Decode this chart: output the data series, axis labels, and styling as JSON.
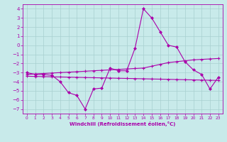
{
  "title": "",
  "xlabel": "Windchill (Refroidissement éolien,°C)",
  "ylabel": "",
  "background_color": "#c8eaea",
  "grid_color": "#a8d0d0",
  "line_color": "#aa00aa",
  "x_values": [
    0,
    1,
    2,
    3,
    4,
    5,
    6,
    7,
    8,
    9,
    10,
    11,
    12,
    13,
    14,
    15,
    16,
    17,
    18,
    19,
    20,
    21,
    22,
    23
  ],
  "y_main": [
    -3.0,
    -3.2,
    -3.2,
    -3.3,
    -4.0,
    -5.2,
    -5.5,
    -7.0,
    -4.8,
    -4.7,
    -2.5,
    -2.8,
    -2.8,
    -0.3,
    4.0,
    3.0,
    1.5,
    0.0,
    -0.2,
    -1.8,
    -2.7,
    -3.2,
    -4.8,
    -3.5
  ],
  "y_upper": [
    -3.2,
    -3.15,
    -3.1,
    -3.05,
    -3.0,
    -2.95,
    -2.9,
    -2.85,
    -2.8,
    -2.75,
    -2.7,
    -2.65,
    -2.6,
    -2.55,
    -2.5,
    -2.3,
    -2.1,
    -1.9,
    -1.8,
    -1.7,
    -1.6,
    -1.55,
    -1.5,
    -1.45
  ],
  "y_lower": [
    -3.4,
    -3.42,
    -3.44,
    -3.46,
    -3.48,
    -3.5,
    -3.52,
    -3.54,
    -3.56,
    -3.58,
    -3.6,
    -3.62,
    -3.64,
    -3.66,
    -3.68,
    -3.7,
    -3.72,
    -3.74,
    -3.76,
    -3.78,
    -3.8,
    -3.82,
    -3.84,
    -3.86
  ],
  "ylim": [
    -7.5,
    4.5
  ],
  "yticks": [
    -7,
    -6,
    -5,
    -4,
    -3,
    -2,
    -1,
    0,
    1,
    2,
    3,
    4
  ],
  "xlim": [
    -0.5,
    23.5
  ],
  "xticks": [
    0,
    1,
    2,
    3,
    4,
    5,
    6,
    7,
    8,
    9,
    10,
    11,
    12,
    13,
    14,
    15,
    16,
    17,
    18,
    19,
    20,
    21,
    22,
    23
  ],
  "figsize": [
    3.2,
    2.0
  ],
  "dpi": 100
}
